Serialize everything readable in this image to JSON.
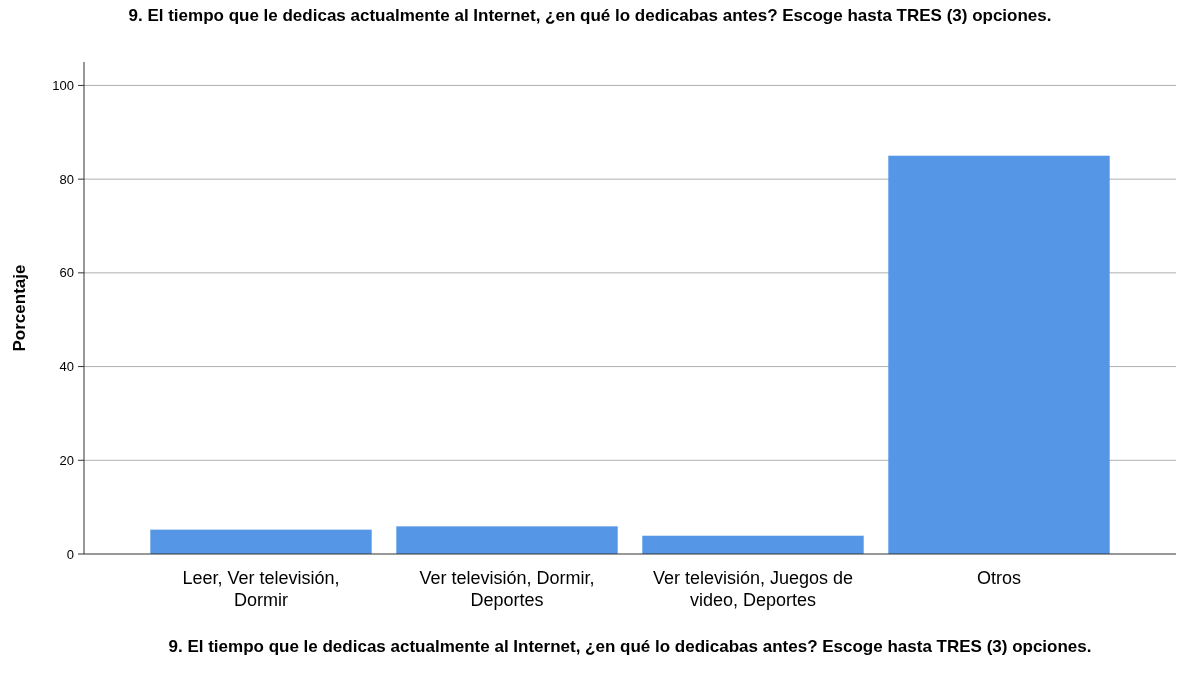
{
  "chart_data": {
    "type": "bar",
    "title": "9. El tiempo que le dedicas actualmente al Internet, ¿en qué lo dedicabas antes? Escoge hasta TRES (3) opciones.",
    "xlabel": "9. El tiempo que le dedicas actualmente al Internet, ¿en qué lo dedicabas antes? Escoge hasta TRES (3) opciones.",
    "ylabel": "Porcentaje",
    "categories": [
      "Leer, Ver televisión, Dormir",
      "Ver televisión, Dormir, Deportes",
      "Ver televisión, Juegos de video, Deportes",
      "Otros"
    ],
    "values": [
      5.2,
      5.9,
      3.9,
      85.0
    ],
    "color": "#5596e6",
    "ylim": [
      0,
      105
    ],
    "yticks": [
      0,
      20,
      40,
      60,
      80,
      100
    ],
    "grid": "y"
  }
}
